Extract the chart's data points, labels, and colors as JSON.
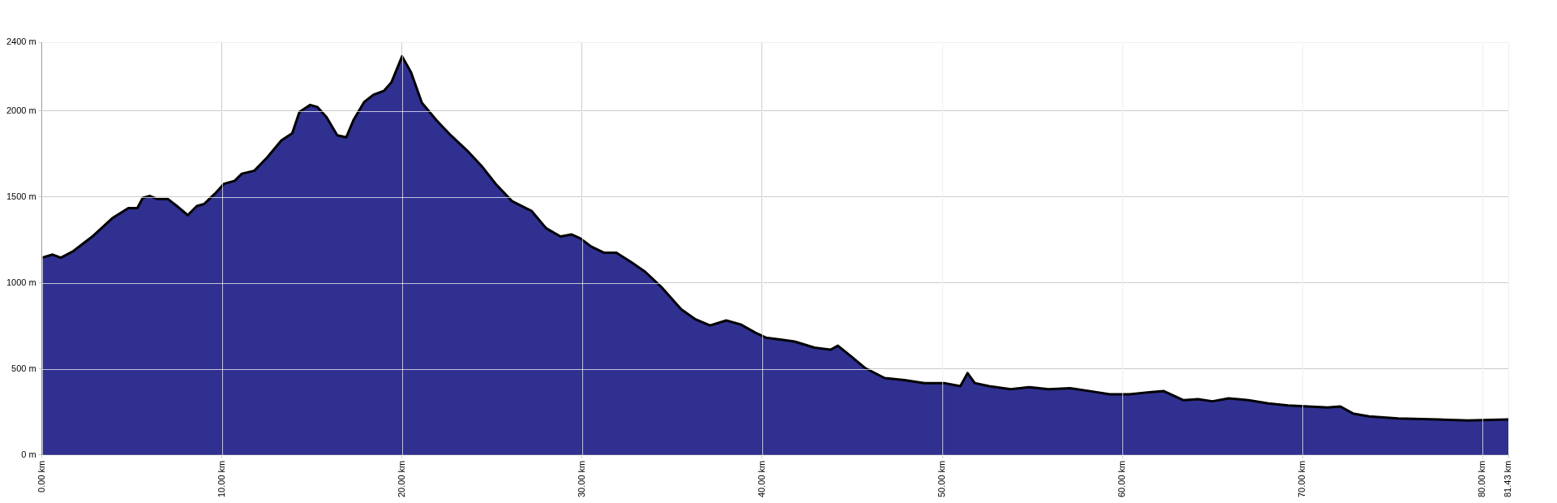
{
  "chart_data": {
    "type": "area",
    "x": [
      0,
      0.6,
      1.05,
      1.7,
      2.8,
      3.9,
      4.8,
      5.3,
      5.6,
      6.0,
      6.4,
      7.0,
      7.5,
      8.1,
      8.6,
      9.0,
      9.6,
      10.1,
      10.7,
      11.1,
      11.8,
      12.5,
      13.3,
      13.9,
      14.3,
      14.9,
      15.3,
      15.8,
      16.4,
      16.9,
      17.3,
      17.9,
      18.4,
      19.0,
      19.4,
      20.0,
      20.5,
      21.1,
      21.9,
      22.7,
      23.6,
      24.4,
      25.2,
      26.1,
      27.2,
      28.0,
      28.8,
      29.4,
      29.9,
      30.5,
      31.2,
      31.9,
      32.7,
      33.5,
      34.4,
      35.5,
      36.3,
      37.1,
      38.0,
      38.8,
      39.6,
      40.2,
      41.0,
      41.8,
      42.9,
      43.8,
      44.2,
      44.9,
      45.7,
      46.8,
      47.9,
      49.0,
      50.1,
      51.0,
      51.4,
      51.8,
      52.6,
      53.8,
      54.8,
      55.9,
      57.1,
      58.2,
      59.3,
      60.4,
      61.5,
      62.3,
      63.4,
      64.2,
      65.0,
      65.9,
      67.0,
      68.1,
      69.2,
      70.3,
      71.4,
      72.1,
      72.8,
      73.7,
      75.3,
      77.5,
      79.2,
      81.43
    ],
    "series": [
      {
        "color": "#303090",
        "values": [
          1147,
          1165,
          1147,
          1182,
          1270,
          1376,
          1435,
          1435,
          1494,
          1506,
          1488,
          1488,
          1447,
          1394,
          1447,
          1459,
          1518,
          1576,
          1594,
          1635,
          1653,
          1729,
          1829,
          1870,
          1994,
          2035,
          2023,
          1965,
          1859,
          1847,
          1947,
          2053,
          2094,
          2118,
          2165,
          2318,
          2224,
          2047,
          1947,
          1859,
          1771,
          1682,
          1576,
          1476,
          1418,
          1318,
          1270,
          1282,
          1259,
          1212,
          1176,
          1176,
          1123,
          1065,
          976,
          847,
          788,
          753,
          782,
          759,
          712,
          682,
          671,
          659,
          624,
          612,
          635,
          576,
          506,
          447,
          435,
          418,
          418,
          400,
          476,
          418,
          400,
          382,
          394,
          382,
          388,
          371,
          353,
          353,
          365,
          371,
          318,
          324,
          312,
          329,
          318,
          300,
          288,
          282,
          276,
          282,
          241,
          224,
          212,
          206,
          200,
          206
        ]
      }
    ],
    "xlim": [
      0,
      81.43
    ],
    "xticks": [
      {
        "value": 0,
        "label": "0.00 km"
      },
      {
        "value": 10,
        "label": "10.00 km"
      },
      {
        "value": 20,
        "label": "20.00 km"
      },
      {
        "value": 30,
        "label": "30.00 km"
      },
      {
        "value": 40,
        "label": "40.00 km"
      },
      {
        "value": 50,
        "label": "50.00 km"
      },
      {
        "value": 60,
        "label": "60.00 km"
      },
      {
        "value": 70,
        "label": "70.00 km"
      },
      {
        "value": 80,
        "label": "80.00 km"
      },
      {
        "value": 81.43,
        "label": "81.43 km"
      }
    ],
    "ylim": [
      0,
      2400
    ],
    "yticks": [
      {
        "value": 0,
        "label": "0 m"
      },
      {
        "value": 500,
        "label": "500 m"
      },
      {
        "value": 1000,
        "label": "1000 m"
      },
      {
        "value": 1500,
        "label": "1500 m"
      },
      {
        "value": 2000,
        "label": "2000 m"
      },
      {
        "value": 2400,
        "label": "2400 m"
      }
    ],
    "grid": true,
    "legend": false
  }
}
